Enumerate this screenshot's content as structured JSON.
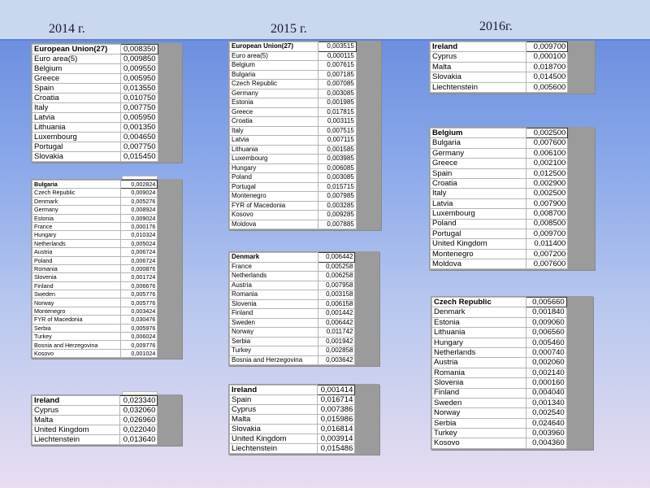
{
  "years": [
    "2014 г.",
    "2015 г.",
    "2016г."
  ],
  "tables": [
    {
      "rows": [
        [
          "European Union(27)",
          "0,008350"
        ],
        [
          "Euro area(5)",
          "0,009850"
        ],
        [
          "Belgium",
          "0,009550"
        ],
        [
          "Greece",
          "0,005950"
        ],
        [
          "Spain",
          "0,013550"
        ],
        [
          "Croatia",
          "0,010750"
        ],
        [
          "Italy",
          "0,007750"
        ],
        [
          "Latvia",
          "0,005950"
        ],
        [
          "Lithuania",
          "0,001350"
        ],
        [
          "Luxembourg",
          "0,004650"
        ],
        [
          "Portugal",
          "0,007750"
        ],
        [
          "Slovakia",
          "0,015450"
        ]
      ]
    },
    {
      "rows": [
        [
          "Bulgaria",
          "0,002824"
        ],
        [
          "Czech Republic",
          "0,009024"
        ],
        [
          "Denmark",
          "0,005276"
        ],
        [
          "Germany",
          "0,008924"
        ],
        [
          "Estonia",
          "0,009024"
        ],
        [
          "France",
          "0,000176"
        ],
        [
          "Hungary",
          "0,010324"
        ],
        [
          "Netherlands",
          "0,005024"
        ],
        [
          "Austria",
          "0,006724"
        ],
        [
          "Poland",
          "0,006724"
        ],
        [
          "Romania",
          "0,000876"
        ],
        [
          "Slovenia",
          "0,001724"
        ],
        [
          "Finland",
          "0,006676"
        ],
        [
          "Sweden",
          "0,005776"
        ],
        [
          "Norway",
          "0,005776"
        ],
        [
          "Montenegro",
          "0,003424"
        ],
        [
          "FYR of Macedonia",
          "0,030476"
        ],
        [
          "Serbia",
          "0,005976"
        ],
        [
          "Turkey",
          "0,006024"
        ],
        [
          "Bosnia and Herzegovina",
          "0,009776"
        ],
        [
          "Kosovo",
          "0,001024"
        ]
      ]
    },
    {
      "rows": [
        [
          "Ireland",
          "0,023340"
        ],
        [
          "Cyprus",
          "0,032060"
        ],
        [
          "Malta",
          "0,026960"
        ],
        [
          "United Kingdom",
          "0,022040"
        ],
        [
          "Liechtenstein",
          "0,013640"
        ]
      ]
    },
    {
      "rows": [
        [
          "European Union(27)",
          "0,003515"
        ],
        [
          "Euro area(5)",
          "0,000115"
        ],
        [
          "Belgium",
          "0,007615"
        ],
        [
          "Bulgaria",
          "0,007185"
        ],
        [
          "Czech Republic",
          "0,007085"
        ],
        [
          "Germany",
          "0,003085"
        ],
        [
          "Estonia",
          "0,001985"
        ],
        [
          "Greece",
          "0,017815"
        ],
        [
          "Croatia",
          "0,003115"
        ],
        [
          "Italy",
          "0,007515"
        ],
        [
          "Latvia",
          "0,007115"
        ],
        [
          "Lithuania",
          "0,001585"
        ],
        [
          "Luxembourg",
          "0,003985"
        ],
        [
          "Hungary",
          "0,006085"
        ],
        [
          "Poland",
          "0,003085"
        ],
        [
          "Portugal",
          "0,015715"
        ],
        [
          "Montenegro",
          "0,007985"
        ],
        [
          "FYR of Macedonia",
          "0,003285"
        ],
        [
          "Kosovo",
          "0,009285"
        ],
        [
          "Moldova",
          "0,007885"
        ]
      ]
    },
    {
      "rows": [
        [
          "Denmark",
          "0,006442"
        ],
        [
          "France",
          "0,005258"
        ],
        [
          "Netherlands",
          "0,006258"
        ],
        [
          "Austria",
          "0,007958"
        ],
        [
          "Romania",
          "0,003158"
        ],
        [
          "Slovenia",
          "0,006158"
        ],
        [
          "Finland",
          "0,001442"
        ],
        [
          "Sweden",
          "0,006442"
        ],
        [
          "Norway",
          "0,011742"
        ],
        [
          "Serbia",
          "0,001942"
        ],
        [
          "Turkey",
          "0,002858"
        ],
        [
          "Bosnia and Herzegovina",
          "0,003642"
        ]
      ]
    },
    {
      "rows": [
        [
          "Ireland",
          "0,001414"
        ],
        [
          "Spain",
          "0,016714"
        ],
        [
          "Cyprus",
          "0,007386"
        ],
        [
          "Malta",
          "0,015986"
        ],
        [
          "Slovakia",
          "0,016814"
        ],
        [
          "United Kingdom",
          "0,003914"
        ],
        [
          "Liechtenstein",
          "0,015486"
        ]
      ]
    },
    {
      "rows": [
        [
          "Ireland",
          "0,009700"
        ],
        [
          "Cyprus",
          "0,000100"
        ],
        [
          "Malta",
          "0,018700"
        ],
        [
          "Slovakia",
          "0,014500"
        ],
        [
          "Liechtenstein",
          "0,005600"
        ]
      ]
    },
    {
      "rows": [
        [
          "Belgium",
          "0,002500"
        ],
        [
          "Bulgaria",
          "0,007600"
        ],
        [
          "Germany",
          "0,006100"
        ],
        [
          "Greece",
          "0,002100"
        ],
        [
          "Spain",
          "0,012500"
        ],
        [
          "Croatia",
          "0,002900"
        ],
        [
          "Italy",
          "0,002500"
        ],
        [
          "Latvia",
          "0,007900"
        ],
        [
          "Luxembourg",
          "0,008700"
        ],
        [
          "Poland",
          "0,008500"
        ],
        [
          "Portugal",
          "0,009700"
        ],
        [
          "United Kingdom",
          "0,011400"
        ],
        [
          "Montenegro",
          "0,007200"
        ],
        [
          "Moldova",
          "0,007600"
        ]
      ]
    },
    {
      "rows": [
        [
          "Czech Republic",
          "0,005660"
        ],
        [
          "Denmark",
          "0,001840"
        ],
        [
          "Estonia",
          "0,009060"
        ],
        [
          "Lithuania",
          "0,006560"
        ],
        [
          "Hungary",
          "0,005460"
        ],
        [
          "Netherlands",
          "0,000740"
        ],
        [
          "Austria",
          "0,002060"
        ],
        [
          "Romania",
          "0,002140"
        ],
        [
          "Slovenia",
          "0,000160"
        ],
        [
          "Finland",
          "0,004040"
        ],
        [
          "Sweden",
          "0,001340"
        ],
        [
          "Norway",
          "0,002540"
        ],
        [
          "Serbia",
          "0,024640"
        ],
        [
          "Turkey",
          "0,003960"
        ],
        [
          "Kosovo",
          "0,004360"
        ]
      ]
    }
  ]
}
